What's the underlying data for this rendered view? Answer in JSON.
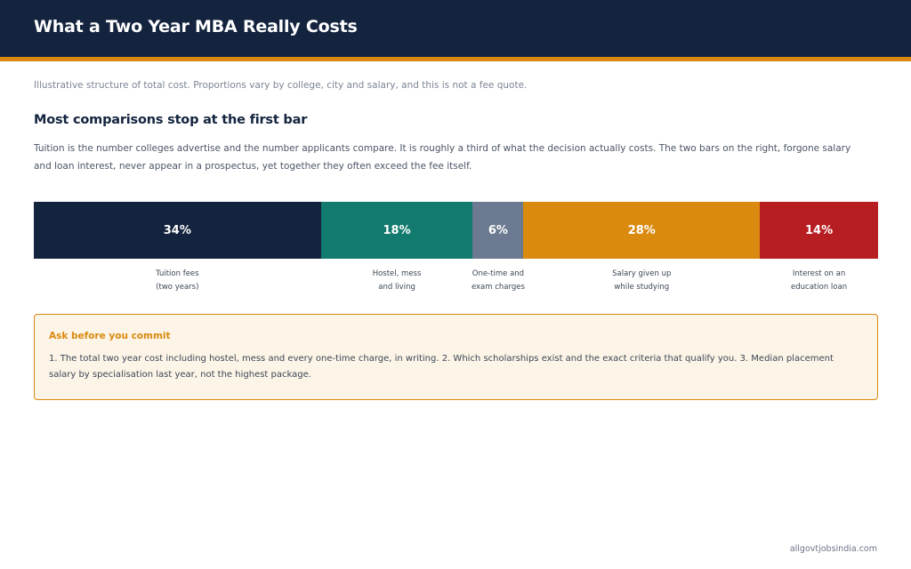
{
  "header": {
    "title": "What a Two Year MBA Really Costs"
  },
  "disclaimer": "Illustrative structure of total cost. Proportions vary by college, city and salary, and this is not a fee quote.",
  "section": {
    "title": "Most comparisons stop at the first bar",
    "body": "Tuition is the number colleges advertise and the number applicants compare. It is roughly a third of what the decision actually costs. The two bars on the right, forgone salary and loan interest, never appear in a prospectus, yet together they often exceed the fee itself."
  },
  "chart_data": {
    "type": "bar",
    "orientation": "horizontal-stacked-100",
    "categories": [
      "Tuition fees\n(two years)",
      "Hostel, mess\nand living",
      "One-time and\nexam charges",
      "Salary given up\nwhile studying",
      "Interest on an\neducation loan"
    ],
    "values": [
      34,
      18,
      6,
      28,
      14
    ],
    "value_labels": [
      "34%",
      "18%",
      "6%",
      "28%",
      "14%"
    ],
    "colors": [
      "#14243f",
      "#127a6e",
      "#6b7a90",
      "#d98a0f",
      "#b71e22"
    ],
    "unit": "%",
    "total": 100
  },
  "callout": {
    "title": "Ask before you commit",
    "body": "1. The total two year cost including hostel, mess and every one-time charge, in writing. 2. Which scholarships exist and the exact criteria that qualify you. 3. Median placement salary by specialisation last year, not the highest package."
  },
  "footer": {
    "source": "allgovtjobsindia.com"
  }
}
